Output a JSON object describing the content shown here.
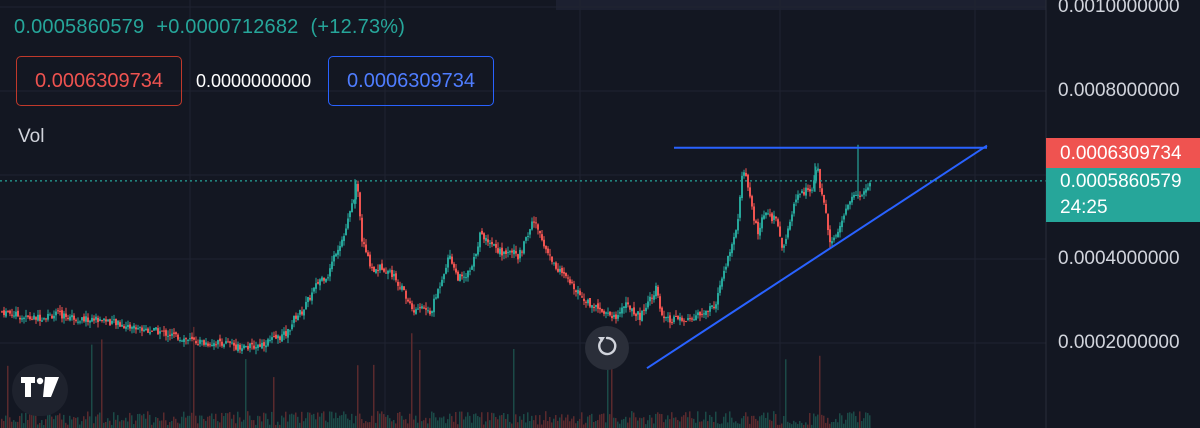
{
  "legend": {
    "close": "0.0005860579",
    "change": "+0.0000712682",
    "change_pct": "(+12.73%)"
  },
  "order_boxes": {
    "sell_price": "0.0006309734",
    "quantity": "0.0000000000",
    "buy_price": "0.0006309734"
  },
  "volume_label": "Vol",
  "price_tags": {
    "high_tag": "0.0006309734",
    "last_price": "0.0005860579",
    "countdown": "24:25"
  },
  "colors": {
    "background": "#131722",
    "up": "#26a69a",
    "down": "#ef5350",
    "trendline": "#2962ff"
  },
  "icons": {
    "reset": "reset-chart-icon",
    "logo": "tradingview-logo-icon"
  },
  "chart_data": {
    "type": "candlestick",
    "title": "",
    "xlabel": "",
    "ylabel": "",
    "y_axis_ticks": [
      "0.0010000000",
      "0.0008000000",
      "0.0004000000",
      "0.0002000000"
    ],
    "ylim": [
      0.0,
      0.001
    ],
    "grid": true,
    "last_price": 0.0005860579,
    "price_path": [
      [
        0,
        0.000275
      ],
      [
        10,
        0.00027
      ],
      [
        20,
        0.000262
      ],
      [
        30,
        0.000258
      ],
      [
        40,
        0.000262
      ],
      [
        55,
        0.000268
      ],
      [
        70,
        0.000262
      ],
      [
        85,
        0.000255
      ],
      [
        100,
        0.000258
      ],
      [
        115,
        0.000245
      ],
      [
        130,
        0.000238
      ],
      [
        145,
        0.000232
      ],
      [
        160,
        0.000226
      ],
      [
        175,
        0.000215
      ],
      [
        190,
        0.000205
      ],
      [
        205,
        0.0002
      ],
      [
        220,
        0.000202
      ],
      [
        235,
        0.000192
      ],
      [
        250,
        0.00019
      ],
      [
        262,
        0.0002
      ],
      [
        275,
        0.000212
      ],
      [
        285,
        0.000222
      ],
      [
        293,
        0.000262
      ],
      [
        300,
        0.000275
      ],
      [
        310,
        0.000318
      ],
      [
        318,
        0.000352
      ],
      [
        326,
        0.000362
      ],
      [
        334,
        0.00042
      ],
      [
        342,
        0.000455
      ],
      [
        349,
        0.000518
      ],
      [
        355,
        0.00058
      ],
      [
        360,
        0.000445
      ],
      [
        366,
        0.0004
      ],
      [
        372,
        0.000372
      ],
      [
        380,
        0.000382
      ],
      [
        390,
        0.000365
      ],
      [
        398,
        0.000338
      ],
      [
        405,
        0.000305
      ],
      [
        412,
        0.000275
      ],
      [
        420,
        0.000288
      ],
      [
        428,
        0.000268
      ],
      [
        435,
        0.000318
      ],
      [
        442,
        0.000372
      ],
      [
        448,
        0.00041
      ],
      [
        455,
        0.000358
      ],
      [
        462,
        0.000352
      ],
      [
        470,
        0.000378
      ],
      [
        478,
        0.000458
      ],
      [
        486,
        0.000445
      ],
      [
        493,
        0.000432
      ],
      [
        500,
        0.000412
      ],
      [
        508,
        0.000426
      ],
      [
        516,
        0.000402
      ],
      [
        524,
        0.000445
      ],
      [
        531,
        0.000492
      ],
      [
        538,
        0.000462
      ],
      [
        545,
        0.000418
      ],
      [
        552,
        0.000388
      ],
      [
        560,
        0.000365
      ],
      [
        567,
        0.000345
      ],
      [
        575,
        0.000328
      ],
      [
        582,
        0.000302
      ],
      [
        590,
        0.000292
      ],
      [
        598,
        0.000283
      ],
      [
        606,
        0.00027
      ],
      [
        614,
        0.000262
      ],
      [
        622,
        0.00029
      ],
      [
        630,
        0.000282
      ],
      [
        638,
        0.000262
      ],
      [
        646,
        0.0003
      ],
      [
        654,
        0.00033
      ],
      [
        660,
        0.000258
      ],
      [
        668,
        0.000252
      ],
      [
        676,
        0.000258
      ],
      [
        684,
        0.00025
      ],
      [
        692,
        0.000262
      ],
      [
        700,
        0.000268
      ],
      [
        708,
        0.00028
      ],
      [
        714,
        0.000296
      ],
      [
        720,
        0.000352
      ],
      [
        726,
        0.000402
      ],
      [
        732,
        0.000445
      ],
      [
        737,
        0.000515
      ],
      [
        741,
        0.000615
      ],
      [
        745,
        0.000582
      ],
      [
        750,
        0.00052
      ],
      [
        756,
        0.000458
      ],
      [
        762,
        0.000508
      ],
      [
        768,
        0.000498
      ],
      [
        775,
        0.000498
      ],
      [
        780,
        0.00042
      ],
      [
        786,
        0.000465
      ],
      [
        792,
        0.000528
      ],
      [
        798,
        0.000558
      ],
      [
        804,
        0.000562
      ],
      [
        810,
        0.000566
      ],
      [
        815,
        0.000625
      ],
      [
        819,
        0.00056
      ],
      [
        823,
        0.00052
      ],
      [
        828,
        0.000448
      ],
      [
        833,
        0.000455
      ],
      [
        838,
        0.000478
      ],
      [
        843,
        0.000512
      ],
      [
        848,
        0.000538
      ],
      [
        853,
        0.000555
      ],
      [
        858,
        0.000548
      ],
      [
        863,
        0.000565
      ],
      [
        868,
        0.000585
      ]
    ],
    "horizontal_line": {
      "price": 0.000665,
      "from_index": 672,
      "to_index": 985
    },
    "trendline": {
      "from": [
        645,
        0.00014
      ],
      "to": [
        985,
        0.00067
      ]
    }
  }
}
